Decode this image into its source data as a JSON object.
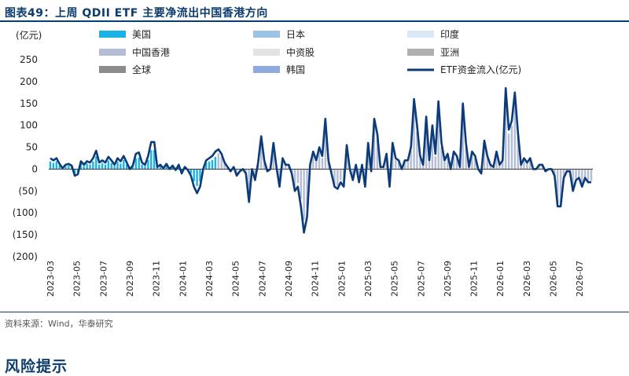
{
  "title": "图表49：上周 QDII ETF 主要净流出中国香港方向",
  "source": "资料来源：Wind，华泰研究",
  "footer_heading": "风险提示",
  "chart_data": {
    "type": "bar",
    "unit_label": "(亿元)",
    "ylim": [
      -200,
      250
    ],
    "yticks": [
      250,
      200,
      150,
      100,
      50,
      0,
      -50,
      -100,
      -150,
      -200
    ],
    "ytick_labels": [
      "250",
      "200",
      "150",
      "100",
      "50",
      "0",
      "(50)",
      "(100)",
      "(150)",
      "(200)"
    ],
    "x_tick_labels": [
      "2023-03",
      "2023-05",
      "2023-07",
      "2023-09",
      "2023-11",
      "2024-01",
      "2024-03",
      "2024-05",
      "2024-07",
      "2024-09",
      "2024-11",
      "2025-01",
      "2025-03",
      "2025-05",
      "2025-07",
      "2025-09",
      "2025-11",
      "2026-01",
      "2026-03",
      "2026-05",
      "2026-07"
    ],
    "legend_position": "top",
    "colors": {
      "美国": "#1ab3e6",
      "日本": "#9cc3e4",
      "印度": "#dbe8f5",
      "中国香港": "#b4bdd6",
      "中资股": "#e3e3e3",
      "亚洲": "#b0b0b0",
      "全球": "#8c8c8c",
      "韩国": "#8faadc",
      "ETF资金流入(亿元)": "#0c3b7a"
    },
    "legend": [
      "美国",
      "日本",
      "印度",
      "中国香港",
      "中资股",
      "亚洲",
      "全球",
      "韩国",
      "ETF资金流入(亿元)"
    ],
    "weeks_per_month": 4.33,
    "line": {
      "name": "ETF资金流入(亿元)",
      "points": [
        [
          0,
          25
        ],
        [
          1,
          20
        ],
        [
          2,
          25
        ],
        [
          3,
          12
        ],
        [
          4,
          2
        ],
        [
          5,
          10
        ],
        [
          6,
          12
        ],
        [
          7,
          8
        ],
        [
          8,
          -15
        ],
        [
          9,
          -12
        ],
        [
          10,
          18
        ],
        [
          11,
          10
        ],
        [
          12,
          18
        ],
        [
          13,
          15
        ],
        [
          14,
          25
        ],
        [
          15,
          42
        ],
        [
          16,
          15
        ],
        [
          17,
          20
        ],
        [
          18,
          15
        ],
        [
          19,
          28
        ],
        [
          20,
          20
        ],
        [
          21,
          10
        ],
        [
          22,
          25
        ],
        [
          23,
          18
        ],
        [
          24,
          30
        ],
        [
          25,
          15
        ],
        [
          26,
          0
        ],
        [
          27,
          8
        ],
        [
          28,
          35
        ],
        [
          29,
          38
        ],
        [
          30,
          15
        ],
        [
          31,
          10
        ],
        [
          32,
          30
        ],
        [
          33,
          62
        ],
        [
          34,
          62
        ],
        [
          35,
          5
        ],
        [
          36,
          10
        ],
        [
          37,
          2
        ],
        [
          38,
          12
        ],
        [
          39,
          0
        ],
        [
          40,
          8
        ],
        [
          41,
          -2
        ],
        [
          42,
          10
        ],
        [
          43,
          -10
        ],
        [
          44,
          5
        ],
        [
          45,
          -2
        ],
        [
          46,
          -15
        ],
        [
          47,
          -40
        ],
        [
          48,
          -55
        ],
        [
          49,
          -40
        ],
        [
          50,
          0
        ],
        [
          51,
          20
        ],
        [
          52,
          25
        ],
        [
          53,
          30
        ],
        [
          54,
          40
        ],
        [
          55,
          45
        ],
        [
          56,
          35
        ],
        [
          57,
          15
        ],
        [
          58,
          5
        ],
        [
          59,
          -5
        ],
        [
          60,
          5
        ],
        [
          61,
          -15
        ],
        [
          62,
          -5
        ],
        [
          63,
          0
        ],
        [
          64,
          -10
        ],
        [
          65,
          -75
        ],
        [
          66,
          0
        ],
        [
          67,
          -25
        ],
        [
          68,
          15
        ],
        [
          69,
          75
        ],
        [
          70,
          20
        ],
        [
          71,
          -5
        ],
        [
          72,
          0
        ],
        [
          73,
          60
        ],
        [
          74,
          5
        ],
        [
          75,
          -40
        ],
        [
          76,
          25
        ],
        [
          77,
          10
        ],
        [
          78,
          10
        ],
        [
          79,
          -10
        ],
        [
          80,
          -50
        ],
        [
          81,
          -40
        ],
        [
          82,
          -85
        ],
        [
          83,
          -145
        ],
        [
          84,
          -110
        ],
        [
          85,
          10
        ],
        [
          86,
          40
        ],
        [
          87,
          20
        ],
        [
          88,
          50
        ],
        [
          89,
          30
        ],
        [
          90,
          115
        ],
        [
          91,
          20
        ],
        [
          92,
          -10
        ],
        [
          93,
          -40
        ],
        [
          94,
          -45
        ],
        [
          95,
          -30
        ],
        [
          96,
          -40
        ],
        [
          97,
          55
        ],
        [
          98,
          0
        ],
        [
          99,
          -25
        ],
        [
          100,
          10
        ],
        [
          101,
          -30
        ],
        [
          102,
          10
        ],
        [
          103,
          -40
        ],
        [
          104,
          60
        ],
        [
          105,
          -5
        ],
        [
          106,
          115
        ],
        [
          107,
          80
        ],
        [
          108,
          5
        ],
        [
          109,
          5
        ],
        [
          110,
          35
        ],
        [
          111,
          -40
        ],
        [
          112,
          60
        ],
        [
          113,
          25
        ],
        [
          114,
          20
        ],
        [
          115,
          0
        ],
        [
          116,
          20
        ],
        [
          117,
          20
        ],
        [
          118,
          50
        ],
        [
          119,
          160
        ],
        [
          120,
          100
        ],
        [
          121,
          30
        ],
        [
          122,
          10
        ],
        [
          123,
          120
        ],
        [
          124,
          20
        ],
        [
          125,
          100
        ],
        [
          126,
          35
        ],
        [
          127,
          155
        ],
        [
          128,
          60
        ],
        [
          129,
          20
        ],
        [
          130,
          35
        ],
        [
          131,
          0
        ],
        [
          132,
          40
        ],
        [
          133,
          30
        ],
        [
          134,
          5
        ],
        [
          135,
          150
        ],
        [
          136,
          60
        ],
        [
          137,
          5
        ],
        [
          138,
          40
        ],
        [
          139,
          30
        ],
        [
          140,
          0
        ],
        [
          141,
          -10
        ],
        [
          142,
          65
        ],
        [
          143,
          30
        ],
        [
          144,
          10
        ],
        [
          145,
          5
        ],
        [
          146,
          40
        ],
        [
          147,
          10
        ],
        [
          148,
          20
        ],
        [
          149,
          185
        ],
        [
          150,
          90
        ],
        [
          151,
          110
        ],
        [
          152,
          175
        ],
        [
          153,
          85
        ],
        [
          154,
          10
        ],
        [
          155,
          25
        ],
        [
          156,
          15
        ],
        [
          157,
          25
        ],
        [
          158,
          0
        ],
        [
          159,
          0
        ],
        [
          160,
          10
        ],
        [
          161,
          10
        ],
        [
          162,
          -5
        ],
        [
          163,
          0
        ],
        [
          164,
          0
        ],
        [
          165,
          -15
        ],
        [
          166,
          -85
        ],
        [
          167,
          -85
        ],
        [
          168,
          -20
        ],
        [
          169,
          -5
        ],
        [
          170,
          -5
        ],
        [
          171,
          -50
        ],
        [
          172,
          -25
        ],
        [
          173,
          -20
        ],
        [
          174,
          -40
        ],
        [
          175,
          -20
        ],
        [
          176,
          -30
        ],
        [
          177,
          -30
        ]
      ]
    },
    "segments": [
      {
        "from": 0,
        "to": 54,
        "color_key": "美国",
        "scale": 0.7
      },
      {
        "from": 55,
        "to": 84,
        "color_key": "中国香港",
        "scale": 0.8
      },
      {
        "from": 85,
        "to": 148,
        "color_key": "中国香港",
        "scale": 0.85
      },
      {
        "from": 149,
        "to": 177,
        "color_key": "中国香港",
        "scale": 0.9
      }
    ]
  }
}
